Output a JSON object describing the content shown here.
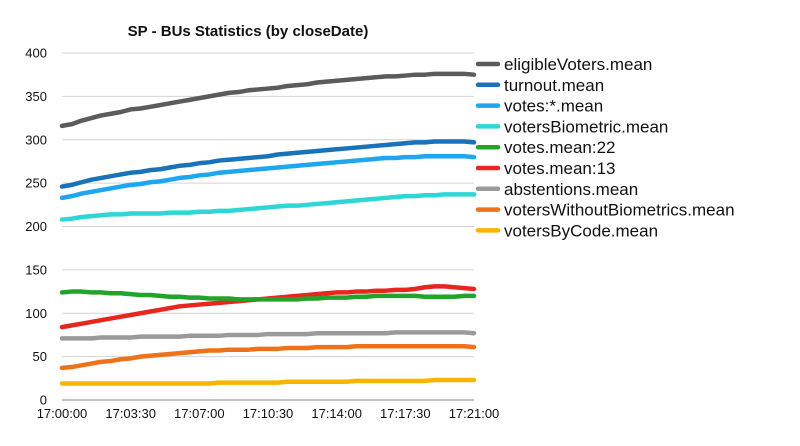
{
  "chart_data": {
    "type": "line",
    "title": "SP - BUs Statistics (by closeDate)",
    "xlabel": "",
    "ylabel": "",
    "ylim": [
      0,
      400
    ],
    "yticks": [
      0,
      50,
      100,
      150,
      200,
      250,
      300,
      350,
      400
    ],
    "grid": true,
    "legend_position": "right",
    "x": [
      "17:00:00",
      "17:00:30",
      "17:01:00",
      "17:01:30",
      "17:02:00",
      "17:02:30",
      "17:03:00",
      "17:03:30",
      "17:04:00",
      "17:04:30",
      "17:05:00",
      "17:05:30",
      "17:06:00",
      "17:06:30",
      "17:07:00",
      "17:07:30",
      "17:08:00",
      "17:08:30",
      "17:09:00",
      "17:09:30",
      "17:10:00",
      "17:10:30",
      "17:11:00",
      "17:11:30",
      "17:12:00",
      "17:12:30",
      "17:13:00",
      "17:13:30",
      "17:14:00",
      "17:14:30",
      "17:15:00",
      "17:15:30",
      "17:16:00",
      "17:16:30",
      "17:17:00",
      "17:17:30",
      "17:18:00",
      "17:18:30",
      "17:19:00",
      "17:19:30",
      "17:20:00",
      "17:20:30",
      "17:21:00"
    ],
    "xticklabels": [
      "17:00:00",
      "17:03:30",
      "17:07:00",
      "17:10:30",
      "17:14:00",
      "17:17:30",
      "17:21:00"
    ],
    "series": [
      {
        "name": "eligibleVoters.mean",
        "color": "#5b5b5b",
        "values": [
          316,
          318,
          322,
          325,
          328,
          330,
          332,
          335,
          336,
          338,
          340,
          342,
          344,
          346,
          348,
          350,
          352,
          354,
          355,
          357,
          358,
          359,
          360,
          362,
          363,
          364,
          366,
          367,
          368,
          369,
          370,
          371,
          372,
          373,
          373,
          374,
          375,
          375,
          376,
          376,
          376,
          376,
          375
        ]
      },
      {
        "name": "turnout.mean",
        "color": "#1a73b9",
        "values": [
          246,
          248,
          251,
          254,
          256,
          258,
          260,
          262,
          263,
          265,
          266,
          268,
          270,
          271,
          273,
          274,
          276,
          277,
          278,
          279,
          280,
          281,
          283,
          284,
          285,
          286,
          287,
          288,
          289,
          290,
          291,
          292,
          293,
          294,
          295,
          296,
          297,
          297,
          298,
          298,
          298,
          298,
          297
        ]
      },
      {
        "name": "votes:*.mean",
        "color": "#1ea6f0",
        "values": [
          233,
          235,
          238,
          240,
          242,
          244,
          246,
          248,
          249,
          251,
          252,
          254,
          256,
          257,
          259,
          260,
          262,
          263,
          264,
          265,
          266,
          267,
          268,
          269,
          270,
          271,
          272,
          273,
          274,
          275,
          276,
          277,
          278,
          279,
          279,
          280,
          280,
          281,
          281,
          281,
          281,
          281,
          280
        ]
      },
      {
        "name": "votersBiometric.mean",
        "color": "#2ed6d6",
        "values": [
          208,
          209,
          211,
          212,
          213,
          214,
          214,
          215,
          215,
          215,
          215,
          216,
          216,
          216,
          217,
          217,
          218,
          218,
          219,
          220,
          221,
          222,
          223,
          224,
          224,
          225,
          226,
          227,
          228,
          229,
          230,
          231,
          232,
          233,
          234,
          235,
          235,
          236,
          236,
          237,
          237,
          237,
          237
        ]
      },
      {
        "name": "votes.mean:22",
        "color": "#22a329",
        "values": [
          124,
          125,
          125,
          124,
          124,
          123,
          123,
          122,
          121,
          121,
          120,
          119,
          119,
          118,
          118,
          117,
          117,
          117,
          116,
          116,
          116,
          116,
          116,
          116,
          116,
          117,
          117,
          118,
          118,
          118,
          119,
          119,
          120,
          120,
          120,
          120,
          120,
          119,
          119,
          119,
          119,
          120,
          120
        ]
      },
      {
        "name": "votes.mean:13",
        "color": "#e8251e",
        "values": [
          84,
          86,
          88,
          90,
          92,
          94,
          96,
          98,
          100,
          102,
          104,
          106,
          108,
          109,
          110,
          111,
          112,
          113,
          114,
          115,
          116,
          117,
          118,
          119,
          120,
          121,
          122,
          123,
          124,
          124,
          125,
          125,
          126,
          126,
          127,
          127,
          128,
          130,
          131,
          131,
          130,
          129,
          128
        ]
      },
      {
        "name": "abstentions.mean",
        "color": "#9a9a9a",
        "values": [
          71,
          71,
          71,
          71,
          72,
          72,
          72,
          72,
          73,
          73,
          73,
          73,
          73,
          74,
          74,
          74,
          74,
          75,
          75,
          75,
          75,
          76,
          76,
          76,
          76,
          76,
          77,
          77,
          77,
          77,
          77,
          77,
          77,
          77,
          78,
          78,
          78,
          78,
          78,
          78,
          78,
          78,
          77
        ]
      },
      {
        "name": "votersWithoutBiometrics.mean",
        "color": "#ef7218",
        "values": [
          37,
          38,
          40,
          42,
          44,
          45,
          47,
          48,
          50,
          51,
          52,
          53,
          54,
          55,
          56,
          57,
          57,
          58,
          58,
          58,
          59,
          59,
          59,
          60,
          60,
          60,
          61,
          61,
          61,
          61,
          62,
          62,
          62,
          62,
          62,
          62,
          62,
          62,
          62,
          62,
          62,
          62,
          61
        ]
      },
      {
        "name": "votersByCode.mean",
        "color": "#f7b500",
        "values": [
          19,
          19,
          19,
          19,
          19,
          19,
          19,
          19,
          19,
          19,
          19,
          19,
          19,
          19,
          19,
          19,
          20,
          20,
          20,
          20,
          20,
          20,
          20,
          21,
          21,
          21,
          21,
          21,
          21,
          21,
          22,
          22,
          22,
          22,
          22,
          22,
          22,
          22,
          23,
          23,
          23,
          23,
          23
        ]
      }
    ]
  }
}
